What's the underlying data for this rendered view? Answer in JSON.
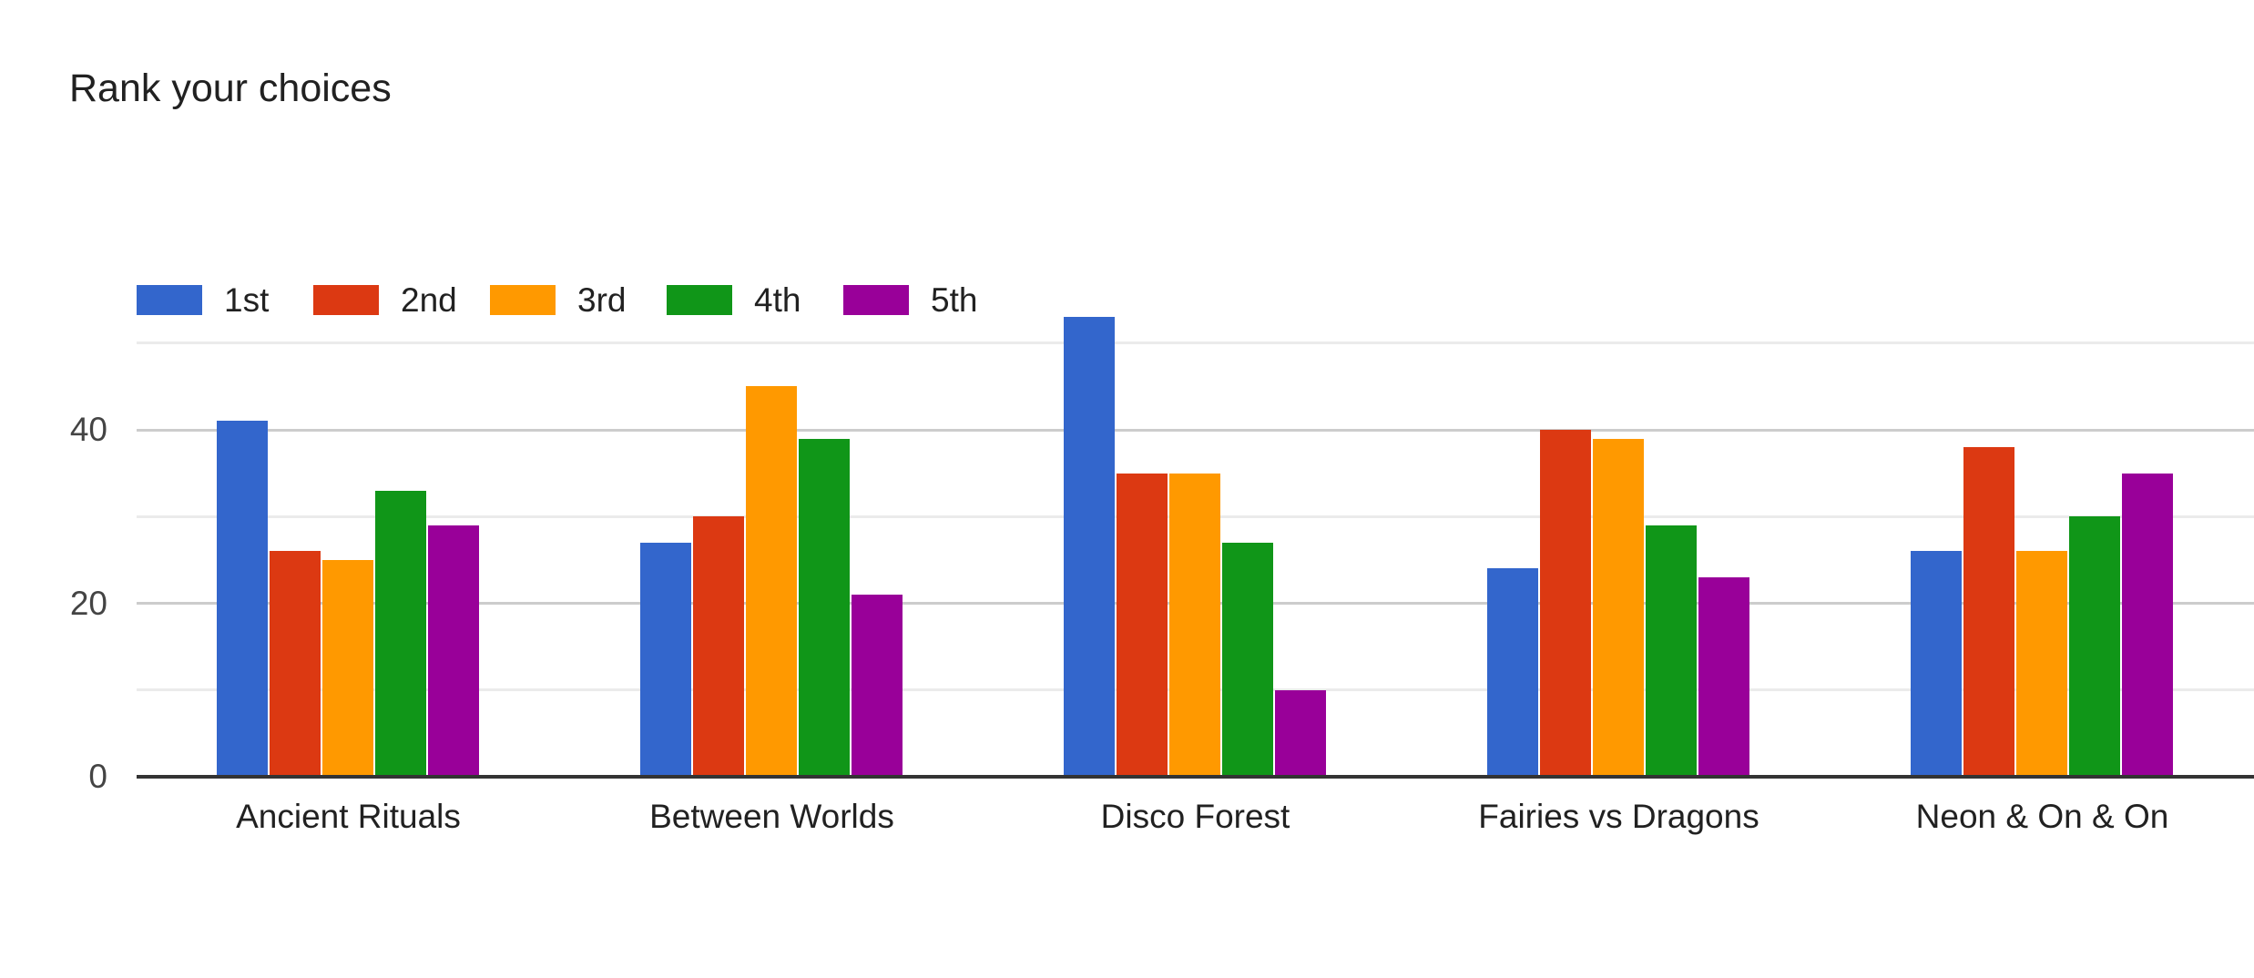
{
  "chart_data": {
    "type": "bar",
    "title": "Rank your choices",
    "categories": [
      "Ancient Rituals",
      "Between Worlds",
      "Disco Forest",
      "Fairies vs Dragons",
      "Neon & On & On"
    ],
    "series": [
      {
        "name": "1st",
        "color": "#3366CC",
        "values": [
          41,
          27,
          53,
          24,
          26
        ]
      },
      {
        "name": "2nd",
        "color": "#DC3912",
        "values": [
          26,
          30,
          35,
          40,
          38
        ]
      },
      {
        "name": "3rd",
        "color": "#FF9900",
        "values": [
          25,
          45,
          35,
          39,
          26
        ]
      },
      {
        "name": "4th",
        "color": "#109618",
        "values": [
          33,
          39,
          27,
          29,
          30
        ]
      },
      {
        "name": "5th",
        "color": "#990099",
        "values": [
          29,
          21,
          10,
          23,
          35
        ]
      }
    ],
    "y_axis": {
      "labeled_ticks": [
        0,
        20,
        40
      ],
      "gridlines_minor": [
        10,
        30,
        50
      ],
      "gridlines_major": [
        20,
        40
      ],
      "min": 0,
      "max": 55
    },
    "legend_position": "top",
    "grid": "on",
    "colors": {
      "baseline": "#333333",
      "gridline_major": "#cccccc",
      "gridline_minor": "#ebebeb",
      "tick_text": "#444444",
      "label_text": "#212121",
      "title_text": "#212121",
      "legend_text": "#212121",
      "background": "#ffffff"
    }
  }
}
